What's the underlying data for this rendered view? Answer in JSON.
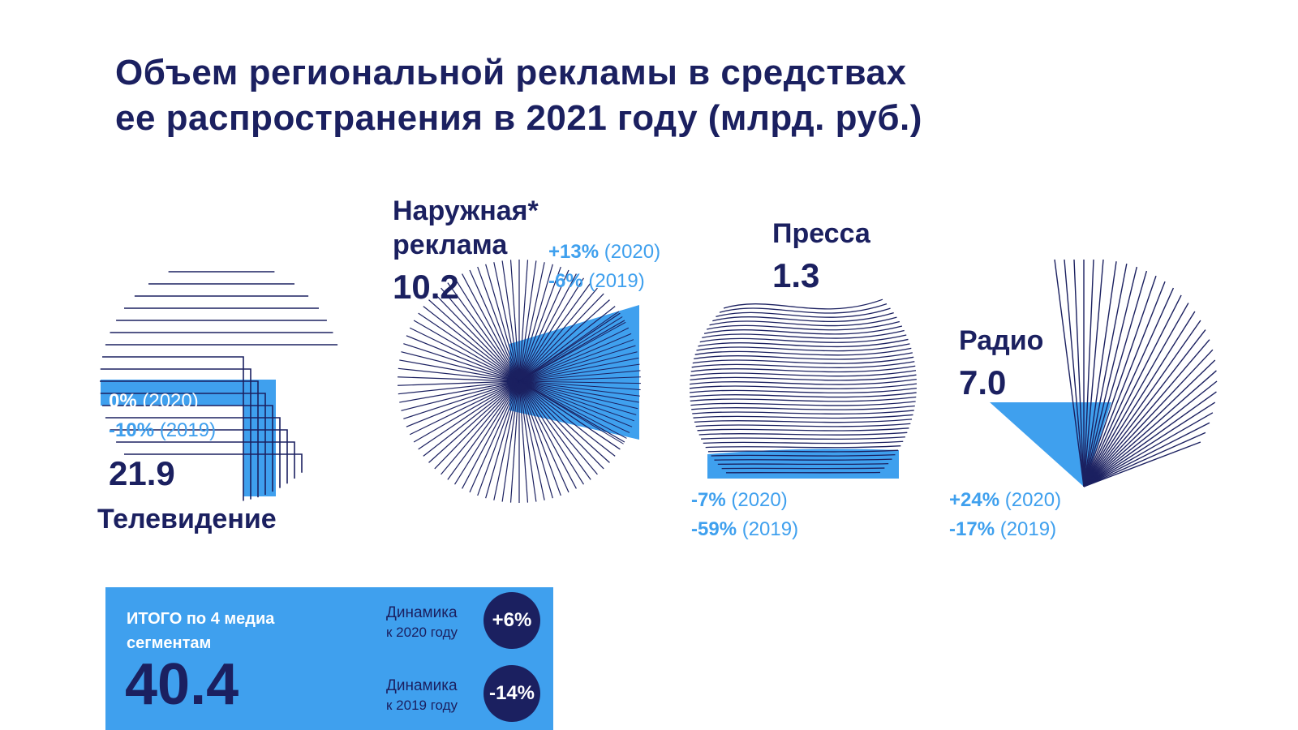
{
  "title": {
    "line1": "Объем региональной рекламы в средствах",
    "line2": "ее распространения в 2021 году (млрд. руб.)"
  },
  "chart_data": {
    "type": "pie",
    "categories": [
      "Телевидение",
      "Наружная* реклама",
      "Пресса",
      "Радио"
    ],
    "values": [
      21.9,
      10.2,
      1.3,
      7.0
    ],
    "change_vs_2020": [
      "0%",
      "+13%",
      "-7%",
      "+24%"
    ],
    "change_vs_2019": [
      "-10%",
      "-6%",
      "-59%",
      "-17%"
    ],
    "year_2020_label": "(2020)",
    "year_2019_label": "(2019)",
    "units": "млрд. руб."
  },
  "segments": {
    "tv": {
      "name": "Телевидение",
      "value": "21.9",
      "d2020": "0%",
      "d2019": "-10%"
    },
    "ooh": {
      "name_line1": "Наружная*",
      "name_line2": "реклама",
      "value": "10.2",
      "d2020": "+13%",
      "d2019": "-6%"
    },
    "press": {
      "name": "Пресса",
      "value": "1.3",
      "d2020": "-7%",
      "d2019": "-59%"
    },
    "radio": {
      "name": "Радио",
      "value": "7.0",
      "d2020": "+24%",
      "d2019": "-17%"
    },
    "y2020": "(2020)",
    "y2019": "(2019)"
  },
  "total": {
    "label": "ИТОГО по 4 медиа сегментам",
    "value": "40.4",
    "dyn2020_line1": "Динамика",
    "dyn2020_line2": "к 2020 году",
    "dyn2020_value": "+6%",
    "dyn2019_line1": "Динамика",
    "dyn2019_line2": "к 2019 году",
    "dyn2019_value": "-14%"
  },
  "colors": {
    "navy": "#1b2060",
    "blue": "#3fa0ee"
  }
}
